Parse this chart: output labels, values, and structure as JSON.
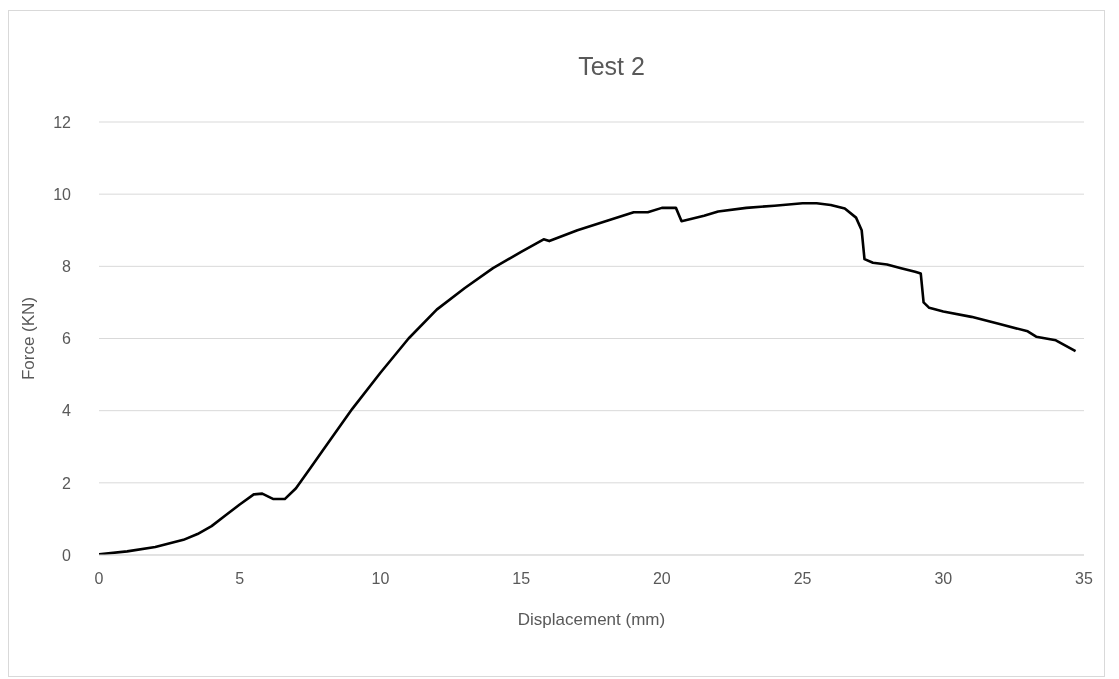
{
  "chart_data": {
    "type": "line",
    "title": "Test 2",
    "xlabel": "Displacement (mm)",
    "ylabel": "Force (KN)",
    "xlim": [
      0,
      35
    ],
    "xticks": [
      0,
      5,
      10,
      15,
      20,
      25,
      30,
      35
    ],
    "ylim": [
      0,
      12
    ],
    "yticks": [
      0,
      2,
      4,
      6,
      8,
      10,
      12
    ],
    "grid": "y",
    "legend": false,
    "marker": "none",
    "line_style": "solid",
    "series": [
      {
        "color": "#000000",
        "x": [
          0,
          1,
          2,
          3,
          3.5,
          4,
          4.5,
          5,
          5.5,
          5.8,
          6.2,
          6.6,
          7,
          7.5,
          8,
          9,
          10,
          11,
          12,
          13,
          14,
          15,
          15.8,
          16,
          17,
          18,
          19,
          19.5,
          20,
          20.5,
          20.7,
          21.5,
          22,
          23,
          24,
          25,
          25.5,
          26,
          26.5,
          26.9,
          27.1,
          27.2,
          27.5,
          28,
          28.5,
          29,
          29.2,
          29.3,
          29.5,
          30,
          31,
          32,
          33,
          33.3,
          34,
          34.7
        ],
        "values": [
          0.02,
          0.1,
          0.22,
          0.42,
          0.58,
          0.8,
          1.1,
          1.4,
          1.68,
          1.7,
          1.55,
          1.55,
          1.85,
          2.4,
          2.95,
          4.05,
          5.05,
          6.0,
          6.8,
          7.4,
          7.95,
          8.4,
          8.75,
          8.7,
          9.0,
          9.25,
          9.5,
          9.5,
          9.62,
          9.62,
          9.25,
          9.4,
          9.52,
          9.62,
          9.68,
          9.75,
          9.75,
          9.7,
          9.6,
          9.35,
          9.0,
          8.2,
          8.1,
          8.05,
          7.95,
          7.85,
          7.8,
          7.0,
          6.85,
          6.75,
          6.6,
          6.4,
          6.2,
          6.05,
          5.95,
          5.65
        ]
      }
    ]
  }
}
